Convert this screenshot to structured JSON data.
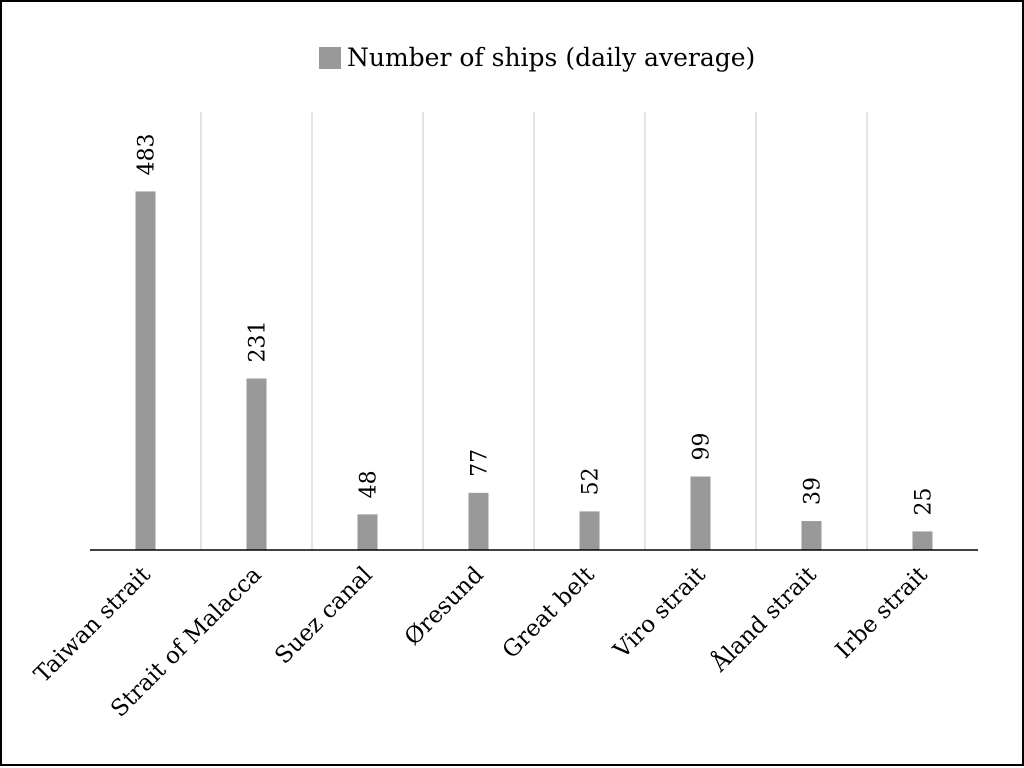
{
  "chart_data": {
    "type": "bar",
    "categories": [
      "Taiwan strait",
      "Strait of Malacca",
      "Suez canal",
      "Øresund",
      "Great belt",
      "Viro strait",
      "Åland strait",
      "Irbe strait"
    ],
    "series": [
      {
        "name": "Number of ships (daily average)",
        "values": [
          483,
          231,
          48,
          77,
          52,
          99,
          39,
          25
        ]
      }
    ],
    "ylim": [
      0,
      590
    ],
    "grid": "vertical",
    "legend": "top-center",
    "value_labels": "rotated",
    "colors": {
      "bar": "#999999",
      "grid": "#c8c8c8",
      "axis": "#000000"
    }
  }
}
